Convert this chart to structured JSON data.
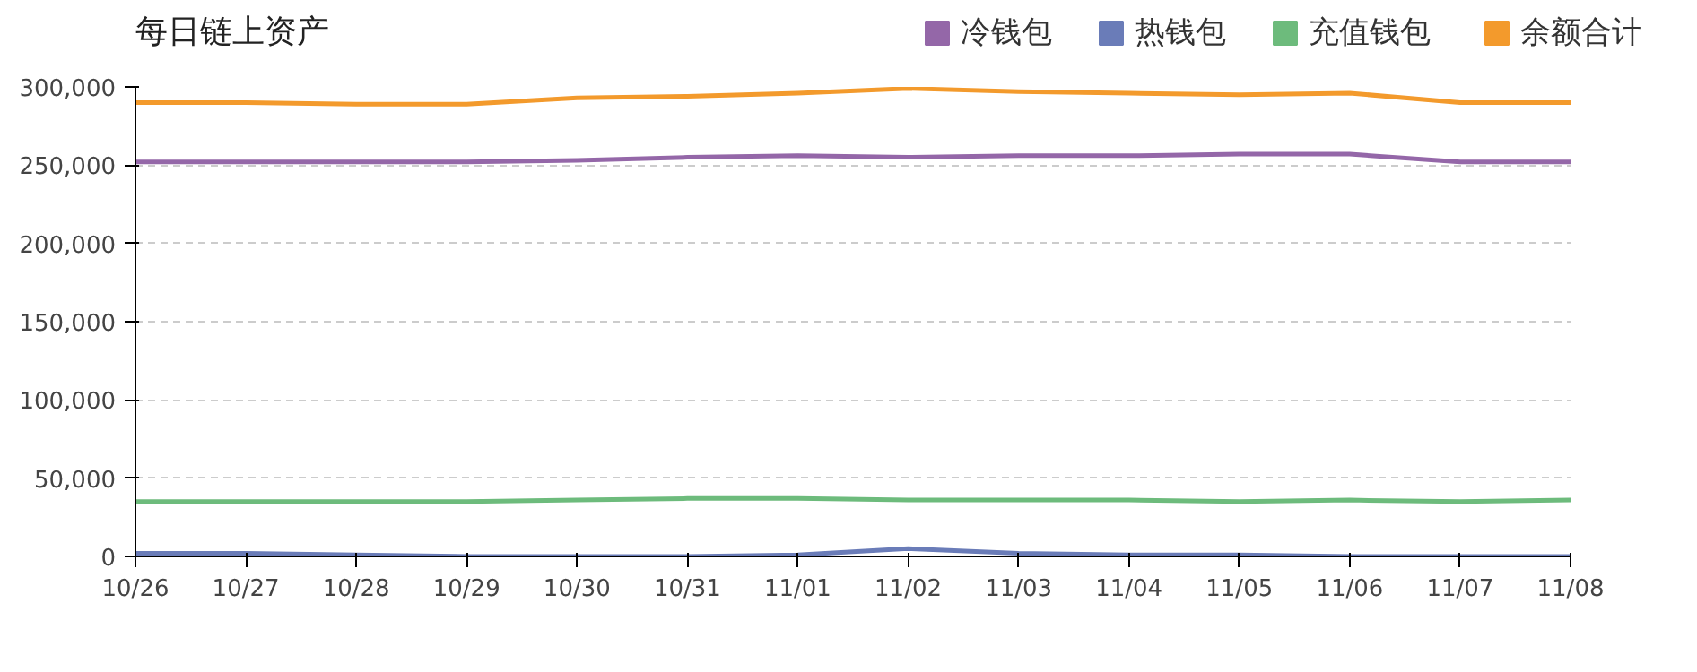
{
  "chart_data": {
    "type": "line",
    "title": "每日链上资产",
    "categories": [
      "10/26",
      "10/27",
      "10/28",
      "10/29",
      "10/30",
      "10/31",
      "11/01",
      "11/02",
      "11/03",
      "11/04",
      "11/05",
      "11/06",
      "11/07",
      "11/08"
    ],
    "series": [
      {
        "name": "冷钱包",
        "color": "#9467a8",
        "values": [
          252000,
          252000,
          252000,
          252000,
          253000,
          255000,
          256000,
          255000,
          256000,
          256000,
          257000,
          257000,
          252000,
          252000
        ]
      },
      {
        "name": "热钱包",
        "color": "#6a7cb8",
        "values": [
          2000,
          2000,
          1000,
          0,
          0,
          0,
          1000,
          5000,
          2000,
          1000,
          1000,
          0,
          0,
          0
        ]
      },
      {
        "name": "充值钱包",
        "color": "#6dbb7c",
        "values": [
          35000,
          35000,
          35000,
          35000,
          36000,
          37000,
          37000,
          36000,
          36000,
          36000,
          35000,
          36000,
          35000,
          36000
        ]
      },
      {
        "name": "余额合计",
        "color": "#f39a2c",
        "values": [
          290000,
          290000,
          289000,
          289000,
          293000,
          294000,
          296000,
          299000,
          297000,
          296000,
          295000,
          296000,
          290000,
          290000
        ]
      }
    ],
    "ylim": [
      0,
      300000
    ],
    "yticks": [
      {
        "value": 0,
        "label": "0"
      },
      {
        "value": 50000,
        "label": "50,000"
      },
      {
        "value": 100000,
        "label": "100,000"
      },
      {
        "value": 150000,
        "label": "150,000"
      },
      {
        "value": 200000,
        "label": "200,000"
      },
      {
        "value": 250000,
        "label": "250,000"
      },
      {
        "value": 300000,
        "label": "300,000"
      }
    ],
    "grid": "y",
    "legend": "top right",
    "marker": "none",
    "line_style": "solid"
  }
}
